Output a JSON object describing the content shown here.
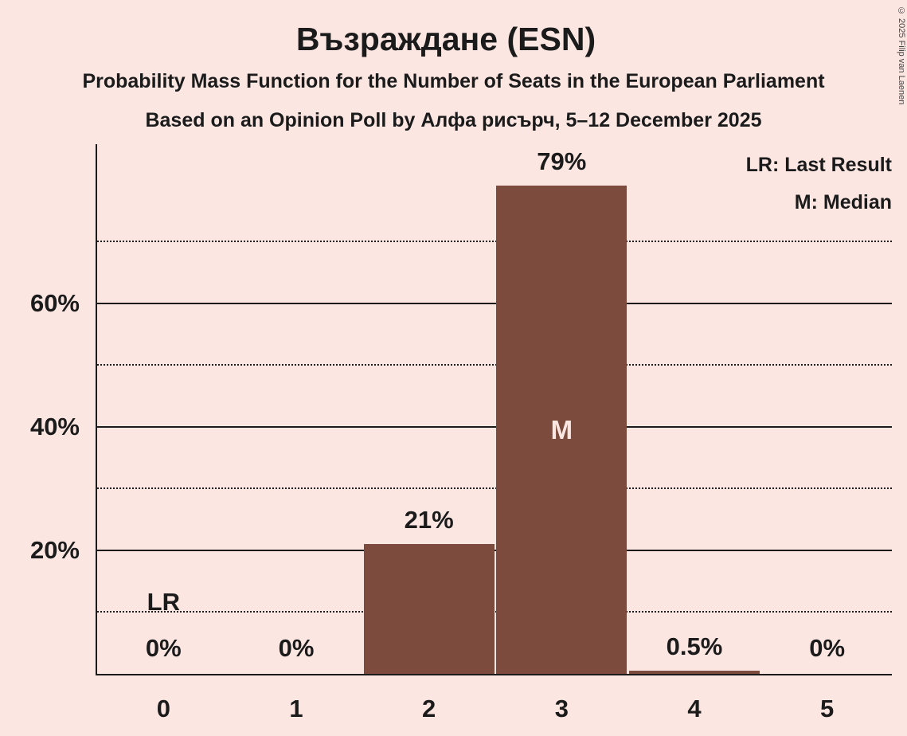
{
  "title": "Възраждане (ESN)",
  "subtitle": "Probability Mass Function for the Number of Seats in the European Parliament",
  "poll_info": "Based on an Opinion Poll by Алфа рисърч, 5–12 December 2025",
  "copyright": "© 2025 Filip van Laenen",
  "legend": {
    "last_result": "LR: Last Result",
    "median": "M: Median"
  },
  "colors": {
    "background": "#fce6e2",
    "bar": "#7c4b3d",
    "text": "#1b1b1b",
    "marker_text": "#fce6e2"
  },
  "chart_data": {
    "type": "bar",
    "title": "Възраждане (ESN)",
    "categories": [
      "0",
      "1",
      "2",
      "3",
      "4",
      "5"
    ],
    "values": [
      0,
      0,
      21,
      79,
      0.5,
      0
    ],
    "value_labels": [
      "0%",
      "0%",
      "21%",
      "79%",
      "0.5%",
      "0%"
    ],
    "median_index": 3,
    "median_marker": "M",
    "last_result_index": 0,
    "last_result_marker": "LR",
    "ylim": [
      0,
      86
    ],
    "solid_gridlines": [
      20,
      40,
      60
    ],
    "solid_gridline_labels": [
      "20%",
      "40%",
      "60%"
    ],
    "dotted_gridlines": [
      10,
      30,
      50,
      70
    ],
    "grid": true,
    "legend_position": "top-right"
  }
}
